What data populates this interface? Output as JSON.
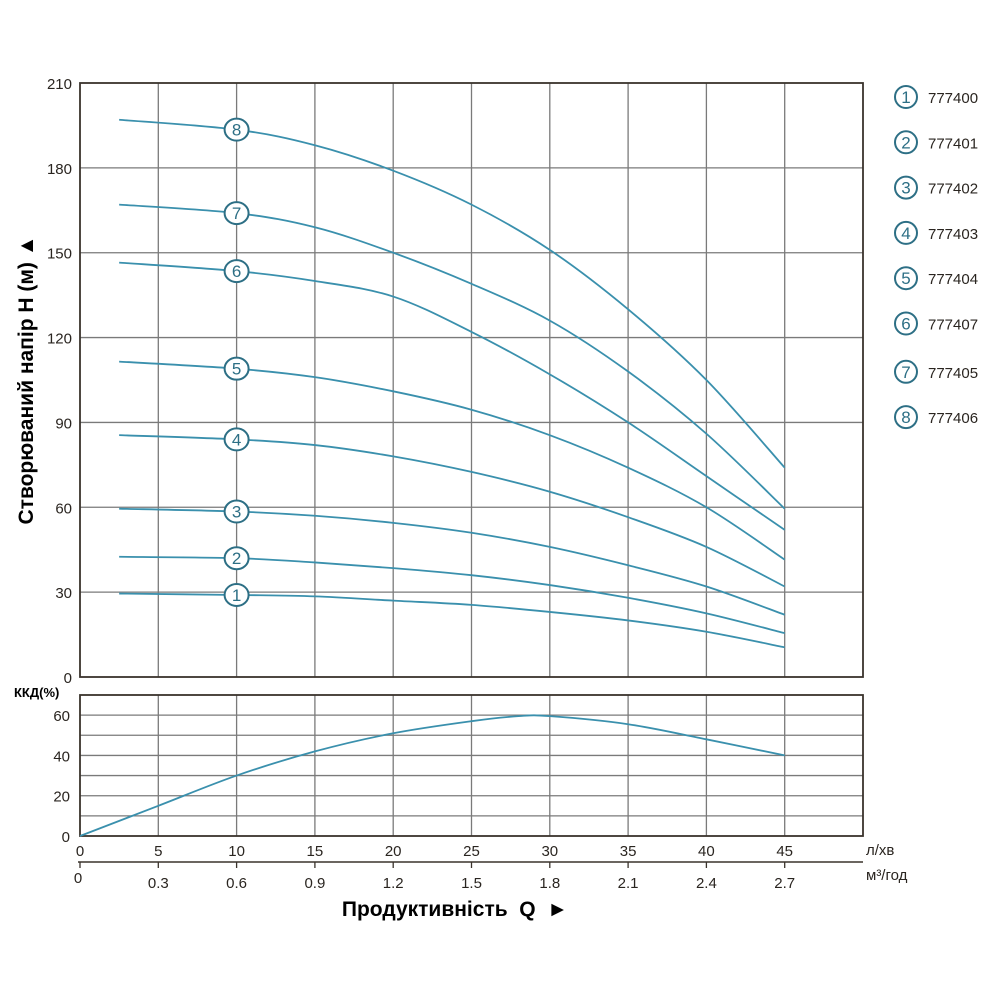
{
  "chart_data": [
    {
      "type": "line",
      "title": "",
      "ylabel": "Створюваний напір H (м) ▲",
      "xlabel": "",
      "ylim": [
        0,
        210
      ],
      "xlim": [
        0,
        50
      ],
      "yticks": [
        "0",
        "30",
        "60",
        "90",
        "120",
        "150",
        "180",
        "210"
      ],
      "grid": true,
      "x": [
        2.5,
        10,
        15,
        20,
        25,
        30,
        35,
        40,
        45
      ],
      "label_x": 10,
      "series": [
        {
          "name": "1",
          "model": "777400",
          "values": [
            29.5,
            29,
            28.5,
            27,
            25.5,
            23,
            20,
            16,
            10.5
          ]
        },
        {
          "name": "2",
          "model": "777401",
          "values": [
            42.5,
            42,
            40.5,
            38.5,
            36,
            32.5,
            28,
            22.5,
            15.5
          ]
        },
        {
          "name": "3",
          "model": "777402",
          "values": [
            59.5,
            58.5,
            57,
            54.5,
            51,
            46,
            39.5,
            32,
            22
          ]
        },
        {
          "name": "4",
          "model": "777403",
          "values": [
            85.5,
            84,
            82,
            78,
            72.5,
            65.5,
            56.5,
            46,
            32
          ]
        },
        {
          "name": "5",
          "model": "777404",
          "values": [
            111.5,
            109,
            106,
            101,
            94.5,
            85.5,
            74,
            60,
            41.5
          ]
        },
        {
          "name": "6",
          "model": "777407",
          "values": [
            146.5,
            143.5,
            140,
            134.5,
            122,
            107,
            90,
            71,
            52
          ]
        },
        {
          "name": "7",
          "model": "777405",
          "values": [
            167,
            164,
            159,
            150,
            139,
            126,
            108,
            86,
            59.5
          ]
        },
        {
          "name": "8",
          "model": "777406",
          "values": [
            197,
            193.5,
            188,
            179,
            167,
            151,
            130,
            105,
            74
          ]
        }
      ],
      "legend_position": "right"
    },
    {
      "type": "line",
      "ylabel": "ККД(%)",
      "ylim": [
        0,
        70
      ],
      "xlim": [
        0,
        50
      ],
      "yticks": [
        "0",
        "20",
        "40",
        "60"
      ],
      "grid": true,
      "series": [
        {
          "name": "ККД",
          "x": [
            0,
            5,
            10,
            15,
            20,
            25,
            28,
            30,
            35,
            40,
            45
          ],
          "values": [
            0,
            15,
            30,
            42,
            51,
            57,
            59.5,
            59.5,
            55.5,
            48,
            40
          ]
        }
      ],
      "xticks_lpm": [
        "0",
        "5",
        "10",
        "15",
        "20",
        "25",
        "30",
        "35",
        "40",
        "45"
      ],
      "xunit_lpm": "л/хв",
      "xticks_m3h": [
        "0",
        "0.3",
        "0.6",
        "0.9",
        "1.2",
        "1.5",
        "1.8",
        "2.1",
        "2.4",
        "2.7"
      ],
      "xunit_m3h": "м³/год",
      "xlabel": "Продуктивність  Q  ►"
    }
  ],
  "colors": {
    "curve": "#3a90ad",
    "marker": "#2d6f85",
    "grid": "#7a7a7a",
    "frame": "#3a332c"
  }
}
